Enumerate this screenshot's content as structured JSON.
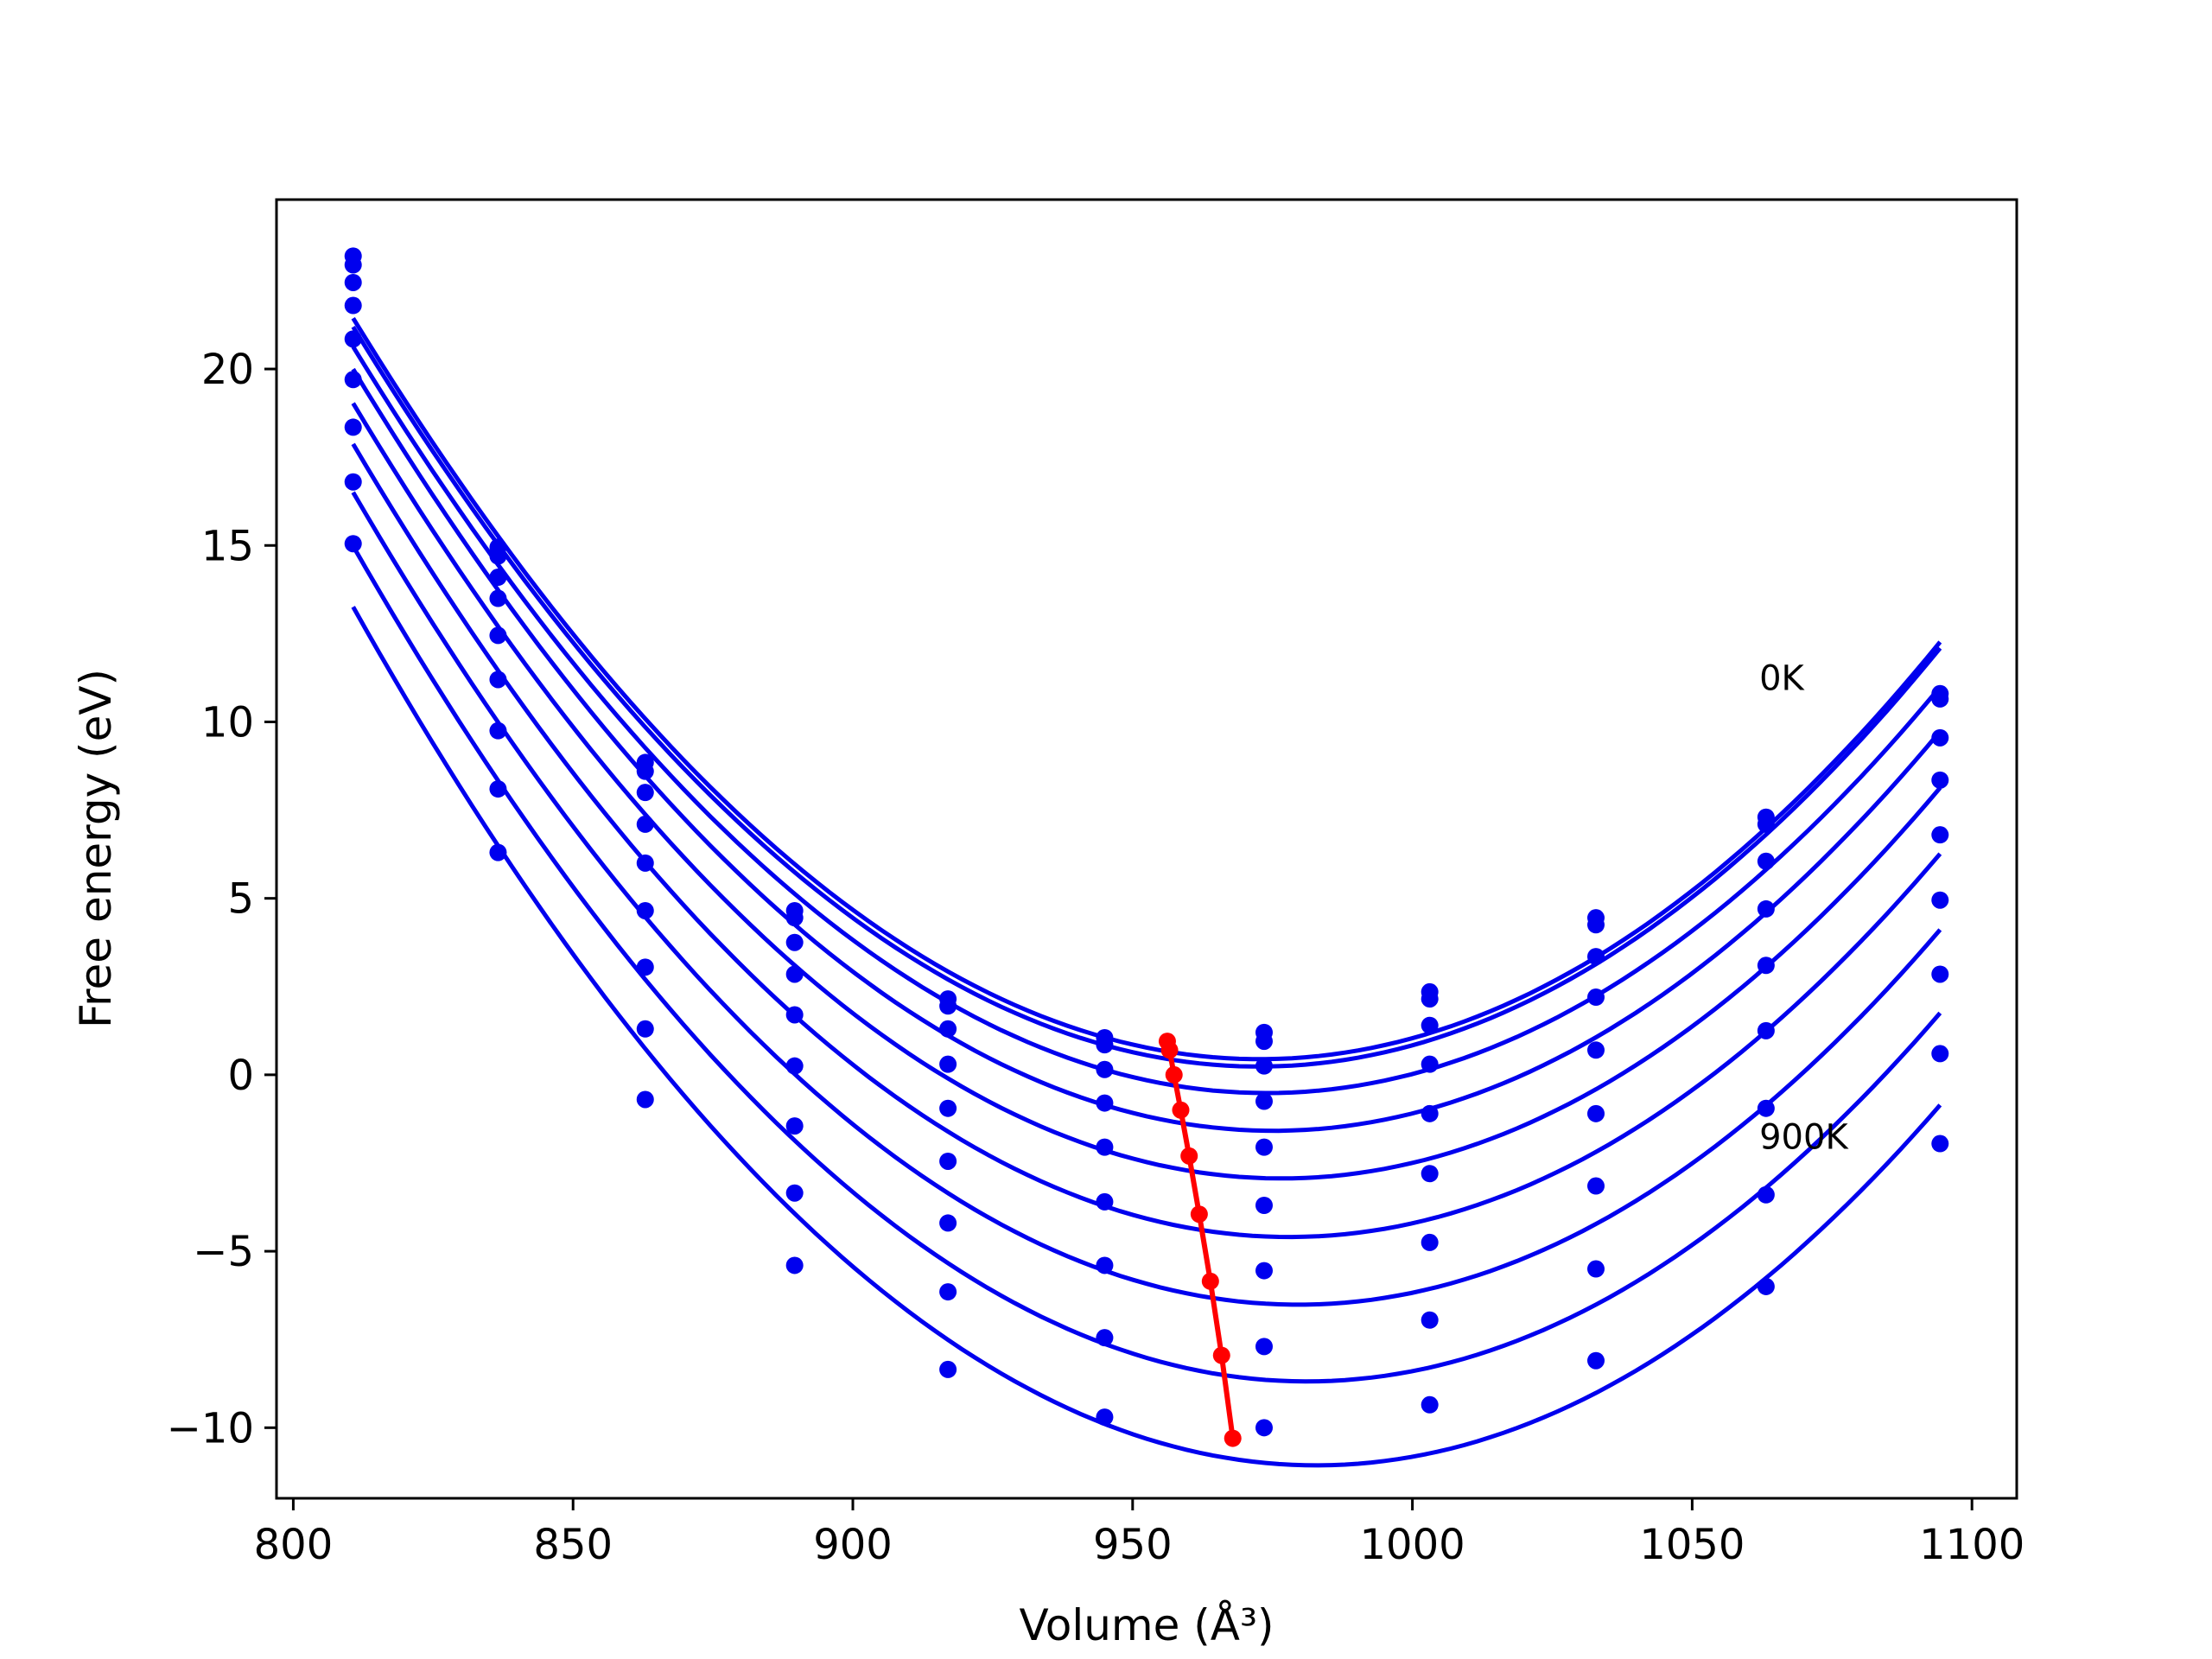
{
  "chart_data": {
    "type": "line",
    "xlabel": "Volume (Å³)",
    "ylabel": "Free energy (eV)",
    "xlim": [
      797,
      1108
    ],
    "ylim": [
      -12,
      24.8
    ],
    "xticks": [
      800,
      850,
      900,
      950,
      1000,
      1050,
      1100
    ],
    "yticks": [
      -10,
      -5,
      0,
      5,
      10,
      15,
      20
    ],
    "xtick_labels": [
      "800",
      "850",
      "900",
      "950",
      "1000",
      "1050",
      "1100"
    ],
    "ytick_labels": [
      "−10",
      "−5",
      "0",
      "5",
      "10",
      "15",
      "20"
    ],
    "grid": false,
    "annotations": [
      {
        "text": "0K",
        "x": 1062,
        "y": 10.9
      },
      {
        "text": "900K",
        "x": 1062,
        "y": -2.1
      }
    ],
    "colors": {
      "curves": "#0000ee",
      "minima": "#ff0000",
      "axes": "#000000"
    },
    "volumes": [
      810.7,
      836.6,
      862.9,
      889.6,
      917.0,
      945.0,
      973.5,
      1003.1,
      1032.8,
      1063.2,
      1094.3
    ],
    "series": [
      {
        "values": [
          23.2,
          14.95,
          8.85,
          4.65,
          2.15,
          1.05,
          1.2,
          2.35,
          4.45,
          7.3,
          10.8
        ]
      },
      {
        "values": [
          22.95,
          14.7,
          8.6,
          4.45,
          1.95,
          0.85,
          0.95,
          2.15,
          4.25,
          7.1,
          10.65
        ]
      },
      {
        "values": [
          22.45,
          14.1,
          8.0,
          3.75,
          1.3,
          0.15,
          0.25,
          1.4,
          3.35,
          6.05,
          9.55
        ]
      },
      {
        "values": [
          21.8,
          13.5,
          7.1,
          2.85,
          0.3,
          -0.8,
          -0.75,
          0.3,
          2.2,
          4.7,
          8.35
        ]
      },
      {
        "values": [
          20.85,
          12.45,
          6.0,
          1.7,
          -0.95,
          -2.05,
          -2.05,
          -1.1,
          0.7,
          3.1,
          6.8
        ]
      },
      {
        "values": [
          19.7,
          11.2,
          4.65,
          0.25,
          -2.45,
          -3.6,
          -3.7,
          -2.8,
          -1.1,
          1.25,
          4.95
        ]
      },
      {
        "values": [
          18.35,
          9.75,
          3.05,
          -1.45,
          -4.2,
          -5.4,
          -5.55,
          -4.75,
          -3.15,
          -0.95,
          2.85
        ]
      },
      {
        "values": [
          16.8,
          8.1,
          1.3,
          -3.35,
          -6.15,
          -7.45,
          -7.7,
          -6.95,
          -5.5,
          -3.4,
          0.6
        ]
      },
      {
        "values": [
          15.05,
          6.3,
          -0.7,
          -5.4,
          -8.35,
          -9.7,
          -10.0,
          -9.35,
          -8.1,
          -6.0,
          -1.95
        ]
      }
    ],
    "minima": {
      "x": [
        956.2,
        956.6,
        957.4,
        958.6,
        960.1,
        961.9,
        963.9,
        965.9,
        967.9
      ],
      "y": [
        0.95,
        0.7,
        0.0,
        -1.0,
        -2.3,
        -3.95,
        -5.85,
        -7.95,
        -10.3
      ]
    }
  }
}
